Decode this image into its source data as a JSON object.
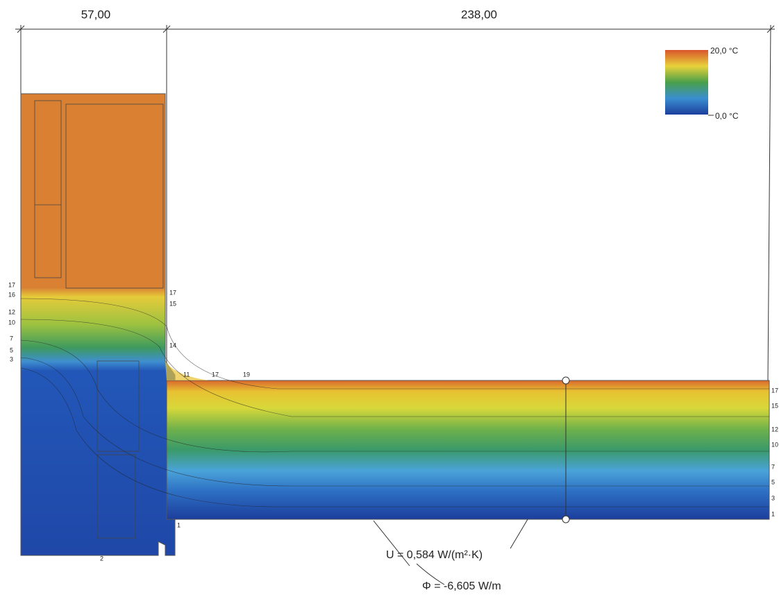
{
  "dimensions": {
    "left": "57,00",
    "right": "238,00"
  },
  "legend": {
    "max": "20,0 °C",
    "min": "0,0 °C"
  },
  "isotherm_labels": {
    "left": [
      "17",
      "16",
      "12",
      "10",
      "7",
      "5",
      "3"
    ],
    "corner": [
      "17",
      "15",
      "14",
      "11",
      "17",
      "19"
    ],
    "right": [
      "17",
      "15",
      "12",
      "10",
      "7",
      "5",
      "3",
      "1"
    ],
    "bottom": [
      "2",
      "1"
    ]
  },
  "annotations": {
    "u_value": "U = 0,584 W/(m²·K)",
    "heat_flow": "Φ = -6,605 W/m"
  }
}
